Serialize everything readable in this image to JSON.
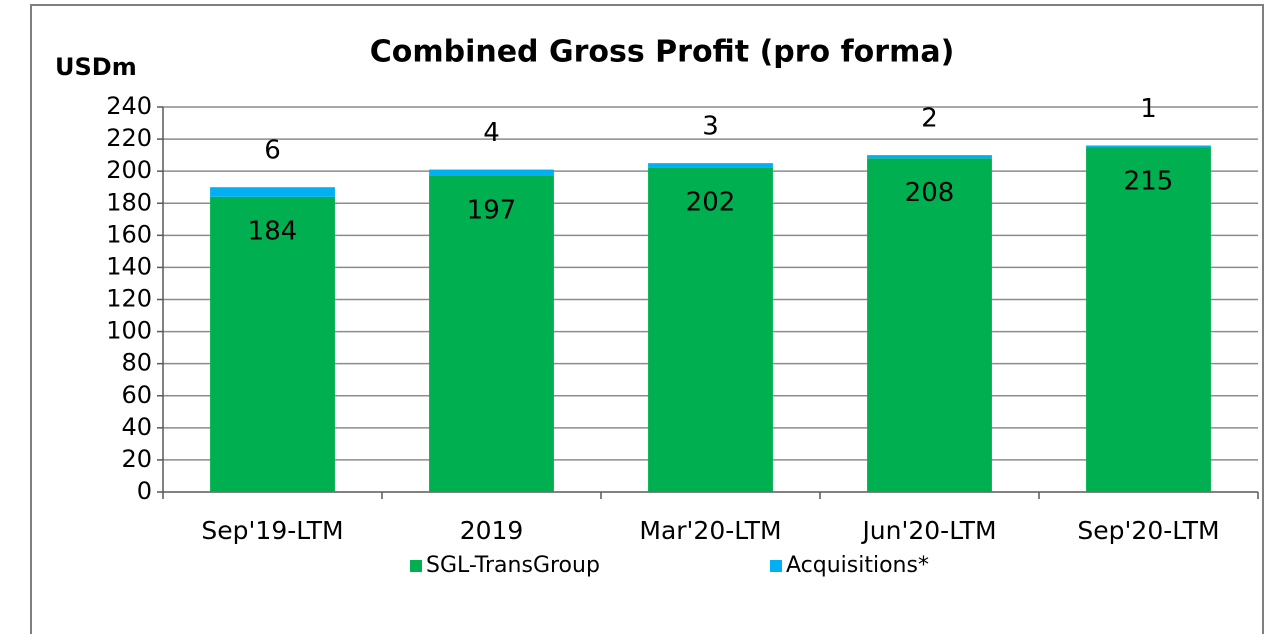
{
  "chart_data": {
    "type": "stacked_bar",
    "title": "Combined Gross Profit (pro forma)",
    "y_axis_label": "USDm",
    "categories": [
      "Sep'19-LTM",
      "2019",
      "Mar'20-LTM",
      "Jun'20-LTM",
      "Sep'20-LTM"
    ],
    "series": [
      {
        "name": "SGL-TransGroup",
        "color": "#00b050",
        "values": [
          184,
          197,
          202,
          208,
          215
        ]
      },
      {
        "name": "Acquisitions*",
        "color": "#00b0f0",
        "values": [
          6,
          4,
          3,
          2,
          1
        ]
      }
    ],
    "ylim": [
      0,
      240
    ],
    "yticks": [
      0,
      20,
      40,
      60,
      80,
      100,
      120,
      140,
      160,
      180,
      200,
      220,
      240
    ],
    "grid": true,
    "legend": "bottom"
  }
}
